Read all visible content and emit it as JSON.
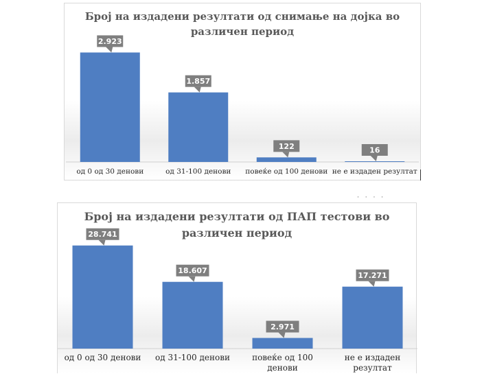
{
  "chart_data": [
    {
      "type": "bar",
      "title": [
        "Број на издадени резултати од снимање на дојка во",
        "различен период"
      ],
      "categories": [
        "од 0 од 30 денови",
        "од 31-100 денови",
        "повеќе од 100  денови",
        "не е издаден резултат"
      ],
      "values": [
        2923,
        1857,
        122,
        16
      ],
      "data_labels": [
        "2.923",
        "1.857",
        "122",
        "16"
      ],
      "ylim": [
        0,
        3500
      ],
      "grid": false,
      "legend": "none",
      "bar_color": "#4f7ec2",
      "label_color": "#7f7f7f"
    },
    {
      "type": "bar",
      "title": [
        "Број на издадени резултати од ПАП тестови во",
        "различен период"
      ],
      "categories": [
        [
          "од 0 од 30 денови"
        ],
        [
          "од 31-100 денови"
        ],
        [
          "повеќе од 100",
          "денови"
        ],
        [
          "не е издаден",
          "резултат"
        ]
      ],
      "values": [
        28741,
        18607,
        2971,
        17271
      ],
      "data_labels": [
        "28.741",
        "18.607",
        "2.971",
        "17.271"
      ],
      "ylim": [
        0,
        35000
      ],
      "grid": false,
      "legend": "none",
      "bar_color": "#4f7ec2",
      "label_color": "#7f7f7f"
    }
  ]
}
